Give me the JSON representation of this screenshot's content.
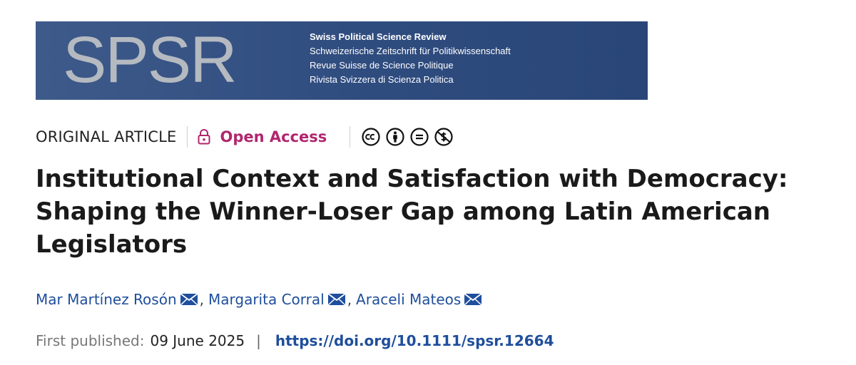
{
  "banner": {
    "logo_text": "SPSR",
    "names": [
      "Swiss Political Science Review",
      "Schweizerische Zeitschrift für Politikwissenschaft",
      "Revue Suisse de Science Politique",
      "Rivista Svizzera di Scienza Politica"
    ],
    "background_color": "#2f4c7f"
  },
  "meta": {
    "article_type": "ORIGINAL ARTICLE",
    "open_access_label": "Open Access",
    "open_access_color": "#b0266e",
    "license_icons": [
      "cc-icon",
      "by-icon",
      "nd-icon",
      "nc-icon"
    ]
  },
  "title": "Institutional Context and Satisfaction with Democracy: Shaping the Winner-Loser Gap among Latin American Legislators",
  "authors": [
    {
      "name": "Mar Martínez Rosón"
    },
    {
      "name": "Margarita Corral"
    },
    {
      "name": "Araceli Mateos"
    }
  ],
  "author_separator": ",",
  "publication": {
    "label": "First published:",
    "date": "09 June 2025",
    "separator": "|",
    "doi": "https://doi.org/10.1111/spsr.12664"
  }
}
